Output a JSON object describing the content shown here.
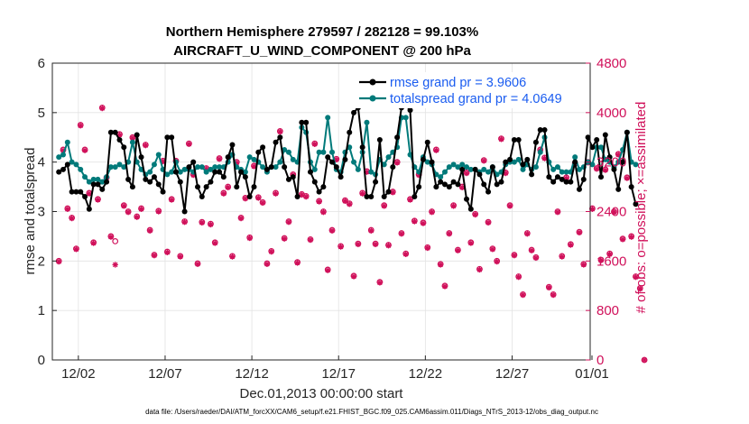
{
  "chart_data": {
    "type": "line",
    "title_line1": "Northern Hemisphere 279597 / 282128 = 99.103%",
    "title_line2": "AIRCRAFT_U_WIND_COMPONENT @ 200 hPa",
    "xlabel": "Dec.01,2013 00:00:00 start",
    "ylabel": "rmse and totalspread",
    "y2label": "# of obs: o=possible; ×=assimilated",
    "footer": "data file: /Users/raeder/DAI/ATM_forcXX/CAM6_setup/f.e21.FHIST_BGC.f09_025.CAM6assim.011/Diags_NTrS_2013-12/obs_diag_output.nc",
    "xlim": [
      0.5,
      31.5
    ],
    "ylim": [
      0,
      6
    ],
    "y2lim": [
      0,
      4800
    ],
    "xtick_labels": [
      {
        "x": 2,
        "label": "12/02"
      },
      {
        "x": 7,
        "label": "12/07"
      },
      {
        "x": 12,
        "label": "12/12"
      },
      {
        "x": 17,
        "label": "12/17"
      },
      {
        "x": 22,
        "label": "12/22"
      },
      {
        "x": 27,
        "label": "12/27"
      },
      {
        "x": 32,
        "label": "01/01"
      }
    ],
    "yticks": [
      0,
      1,
      2,
      3,
      4,
      5,
      6
    ],
    "y2ticks": [
      0,
      800,
      1600,
      2400,
      3200,
      4000,
      4800
    ],
    "colors": {
      "rmse": "#000000",
      "spread": "#007a7a",
      "obs": "#d0105a",
      "legend_text": "#1a5cf0"
    },
    "series": [
      {
        "name": "rmse grand pr = 3.9606",
        "x_start": 0.875,
        "x_step": 0.25,
        "values": [
          3.8,
          3.85,
          3.95,
          3.4,
          3.4,
          3.4,
          3.3,
          3.05,
          3.55,
          3.55,
          3.45,
          3.6,
          4.6,
          4.6,
          4.45,
          4.3,
          3.65,
          3.5,
          4.55,
          4.1,
          3.65,
          3.6,
          3.7,
          3.55,
          3.4,
          4.5,
          4.5,
          3.8,
          3.6,
          3.0,
          3.9,
          4.0,
          3.5,
          3.3,
          3.5,
          3.6,
          3.8,
          3.8,
          3.7,
          4.1,
          4.35,
          3.5,
          3.8,
          3.7,
          3.3,
          3.5,
          4.2,
          4.3,
          3.85,
          3.9,
          4.4,
          4.5,
          3.9,
          3.65,
          3.7,
          3.3,
          4.8,
          4.8,
          3.8,
          3.6,
          3.4,
          3.5,
          4.1,
          4.0,
          3.9,
          3.7,
          4.05,
          4.6,
          5.0,
          5.1,
          4.3,
          3.3,
          3.3,
          3.6,
          4.45,
          3.3,
          3.4,
          3.9,
          4.5,
          5.1,
          5.15,
          5.05,
          3.3,
          3.5,
          4.05,
          4.4,
          4.0,
          3.5,
          3.6,
          3.55,
          3.5,
          3.6,
          3.55,
          3.85,
          3.25,
          3.05,
          3.85,
          3.75,
          3.55,
          3.4,
          3.9,
          3.55,
          3.6,
          4.0,
          4.05,
          4.45,
          4.45,
          3.95,
          4.05,
          3.75,
          4.4,
          4.65,
          4.65,
          3.7,
          3.6,
          3.7,
          3.65,
          3.6,
          3.6,
          4.0,
          3.45,
          3.65,
          4.5,
          4.3,
          4.45,
          3.7,
          4.55,
          4.1,
          3.85,
          3.45,
          4.0,
          4.6,
          3.5,
          3.15
        ]
      },
      {
        "name": "totalspread grand pr = 4.0649",
        "x_start": 0.875,
        "x_step": 0.25,
        "values": [
          4.1,
          4.15,
          4.4,
          4.0,
          3.95,
          3.85,
          3.7,
          3.6,
          3.65,
          3.65,
          3.6,
          3.7,
          3.9,
          3.9,
          3.95,
          3.9,
          4.0,
          4.4,
          4.0,
          3.85,
          3.75,
          3.8,
          3.95,
          4.15,
          3.85,
          3.75,
          3.8,
          4.0,
          3.8,
          3.85,
          3.85,
          3.8,
          3.9,
          3.9,
          3.8,
          3.85,
          3.9,
          3.9,
          3.9,
          4.0,
          4.15,
          3.9,
          3.85,
          3.8,
          4.1,
          4.05,
          4.0,
          3.9,
          3.8,
          3.9,
          3.9,
          4.0,
          4.25,
          4.2,
          4.05,
          4.0,
          4.7,
          4.6,
          4.0,
          3.85,
          4.2,
          4.2,
          4.9,
          4.2,
          3.85,
          3.8,
          4.2,
          4.3,
          4.0,
          3.85,
          4.2,
          4.8,
          3.8,
          3.75,
          4.05,
          3.95,
          4.1,
          4.2,
          4.3,
          4.9,
          4.9,
          4.15,
          3.9,
          3.8,
          4.1,
          4.0,
          3.95,
          3.75,
          3.7,
          3.8,
          3.9,
          3.95,
          3.9,
          3.95,
          3.9,
          3.85,
          3.85,
          3.8,
          3.85,
          3.8,
          3.9,
          3.75,
          3.8,
          3.95,
          4.0,
          4.0,
          4.05,
          3.85,
          3.95,
          3.85,
          3.9,
          4.2,
          4.5,
          4.0,
          3.85,
          3.9,
          3.8,
          3.8,
          3.8,
          4.1,
          3.85,
          3.9,
          4.0,
          3.95,
          4.3,
          4.3,
          4.05,
          4.0,
          3.9,
          4.0,
          4.25,
          4.6,
          4.0,
          3.95
        ]
      },
      {
        "name": "# of obs possible",
        "marker": "o",
        "axis": "right",
        "x_start": 0.875,
        "x_step": 0.25,
        "values": [
          1600,
          3400,
          2450,
          2300,
          1800,
          3800,
          3400,
          2700,
          1900,
          2600,
          4080,
          2950,
          2000,
          1920,
          3650,
          2500,
          2400,
          3600,
          2320,
          2450,
          3480,
          2100,
          1700,
          2410,
          3220,
          1750,
          2600,
          3220,
          1680,
          2240,
          3500,
          3000,
          1560,
          2230,
          3100,
          2200,
          1900,
          3260,
          2700,
          2800,
          1680,
          3200,
          2300,
          2620,
          1980,
          3140,
          2630,
          2550,
          1560,
          1760,
          2700,
          3700,
          1970,
          2240,
          3000,
          1580,
          2680,
          2650,
          1950,
          3500,
          2570,
          2400,
          1460,
          2100,
          3250,
          1840,
          2580,
          2530,
          1360,
          1880,
          2700,
          3050,
          2100,
          1880,
          1260,
          2500,
          1860,
          2720,
          3200,
          2050,
          1720,
          2600,
          2250,
          3000,
          2220,
          1820,
          2400,
          3400,
          1550,
          1200,
          2050,
          2500,
          1780,
          2800,
          3030,
          1900,
          2360,
          1470,
          3230,
          2230,
          1800,
          1600,
          3580,
          3030,
          2500,
          1700,
          1350,
          1060,
          2050,
          1780,
          1660,
          3400,
          3270,
          1180,
          1060,
          2400,
          1680,
          2950,
          1870,
          3180,
          2070,
          1550,
          3200,
          2450,
          3100,
          1620,
          3080,
          1720,
          2400,
          3330,
          1960,
          2950,
          2000,
          1350,
          1160,
          0
        ]
      },
      {
        "name": "# of obs assimilated",
        "marker": "*",
        "axis": "right",
        "x_start": 0.875,
        "x_step": 0.25,
        "values": [
          1590,
          3390,
          2440,
          2290,
          1790,
          3790,
          3390,
          2690,
          1890,
          2590,
          4070,
          2940,
          1990,
          1540,
          3640,
          2490,
          2390,
          3590,
          2310,
          2440,
          3470,
          2090,
          1690,
          2400,
          3210,
          1740,
          2590,
          3210,
          1670,
          2230,
          3490,
          2990,
          1550,
          2220,
          3090,
          2190,
          1890,
          3250,
          2690,
          2790,
          1670,
          3190,
          2290,
          2610,
          1970,
          3130,
          2620,
          2540,
          1550,
          1750,
          2690,
          3690,
          1960,
          2230,
          2990,
          1570,
          2670,
          2640,
          1940,
          3490,
          2560,
          2390,
          1450,
          2090,
          3240,
          1830,
          2570,
          2520,
          1350,
          1870,
          2690,
          3040,
          2090,
          1870,
          1250,
          2490,
          1850,
          2710,
          3190,
          2040,
          1710,
          2590,
          2240,
          2990,
          2210,
          1810,
          2390,
          3390,
          1540,
          1190,
          2040,
          2490,
          1770,
          2790,
          3020,
          1890,
          2350,
          1460,
          3220,
          2220,
          1790,
          1590,
          3570,
          3020,
          2490,
          1690,
          1340,
          1050,
          2040,
          1770,
          1650,
          3390,
          3260,
          1170,
          1050,
          2390,
          1670,
          2940,
          1860,
          3170,
          2060,
          1540,
          3190,
          2440,
          3090,
          1610,
          3070,
          1710,
          2390,
          3320,
          1950,
          2940,
          1990,
          1340,
          1150,
          0
        ]
      }
    ]
  }
}
